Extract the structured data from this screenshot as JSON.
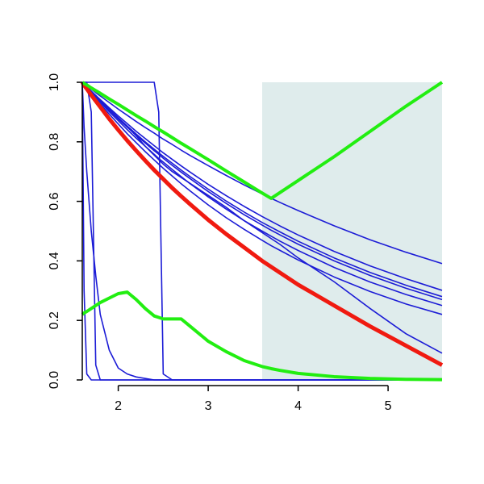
{
  "chart_data": {
    "type": "line",
    "x": [
      1.6,
      1.62,
      1.65,
      1.7,
      1.75,
      1.8,
      1.9,
      2.0,
      2.1,
      2.2,
      2.3,
      2.4,
      2.45,
      2.5,
      2.6,
      2.7,
      2.8,
      3.0,
      3.2,
      3.4,
      3.6,
      3.7,
      3.8,
      4.0,
      4.4,
      4.8,
      5.2,
      5.6
    ],
    "xlim": [
      1.6,
      5.6
    ],
    "xticks": [
      2,
      3,
      4,
      5
    ],
    "ylim": [
      0,
      1
    ],
    "yticks": [
      {
        "value": 0,
        "label": "0.0"
      },
      0.2,
      0.4,
      0.6,
      0.8,
      {
        "value": 1,
        "label": "1.0"
      }
    ],
    "shaded_region": {
      "xlim": [
        3.6,
        5.6
      ],
      "color": "#dfecec"
    },
    "series": [
      {
        "color": "#1c1cd6",
        "width": 1.6,
        "values": [
          1,
          0.995,
          0.988,
          0.977,
          0.965,
          0.954,
          0.932,
          0.91,
          0.889,
          0.868,
          0.848,
          0.829,
          0.819,
          0.809,
          0.791,
          0.772,
          0.754,
          0.72,
          0.687,
          0.655,
          0.625,
          0.61,
          0.596,
          0.569,
          0.518,
          0.471,
          0.429,
          0.391
        ]
      },
      {
        "color": "#1c1cd6",
        "width": 1.6,
        "values": [
          1,
          0.994,
          0.985,
          0.97,
          0.956,
          0.942,
          0.914,
          0.887,
          0.861,
          0.835,
          0.811,
          0.787,
          0.775,
          0.763,
          0.741,
          0.719,
          0.698,
          0.657,
          0.619,
          0.583,
          0.549,
          0.533,
          0.517,
          0.487,
          0.432,
          0.383,
          0.34,
          0.301
        ]
      },
      {
        "color": "#1c1cd6",
        "width": 1.6,
        "values": [
          1,
          0.994,
          0.984,
          0.969,
          0.953,
          0.938,
          0.909,
          0.881,
          0.853,
          0.826,
          0.8,
          0.775,
          0.763,
          0.751,
          0.728,
          0.705,
          0.683,
          0.641,
          0.601,
          0.564,
          0.529,
          0.513,
          0.497,
          0.466,
          0.41,
          0.361,
          0.318,
          0.28
        ]
      },
      {
        "color": "#1c1cd6",
        "width": 1.6,
        "values": [
          1,
          0.993,
          0.984,
          0.968,
          0.952,
          0.937,
          0.906,
          0.877,
          0.849,
          0.822,
          0.796,
          0.77,
          0.758,
          0.745,
          0.721,
          0.698,
          0.676,
          0.633,
          0.593,
          0.555,
          0.52,
          0.503,
          0.487,
          0.456,
          0.4,
          0.351,
          0.308,
          0.27
        ]
      },
      {
        "color": "#1c1cd6",
        "width": 1.6,
        "values": [
          1,
          0.993,
          0.983,
          0.966,
          0.949,
          0.933,
          0.901,
          0.871,
          0.841,
          0.812,
          0.785,
          0.758,
          0.744,
          0.732,
          0.707,
          0.683,
          0.659,
          0.615,
          0.574,
          0.535,
          0.5,
          0.483,
          0.466,
          0.435,
          0.378,
          0.329,
          0.287,
          0.25
        ]
      },
      {
        "color": "#1c1cd6",
        "width": 1.6,
        "values": [
          1,
          0.992,
          0.981,
          0.963,
          0.945,
          0.927,
          0.893,
          0.86,
          0.827,
          0.797,
          0.767,
          0.739,
          0.725,
          0.711,
          0.685,
          0.659,
          0.635,
          0.588,
          0.545,
          0.506,
          0.469,
          0.451,
          0.435,
          0.403,
          0.346,
          0.297,
          0.255,
          0.22
        ]
      },
      {
        "color": "#1c1cd6",
        "width": 1.6,
        "values": [
          1,
          0.994,
          0.985,
          0.97,
          0.955,
          0.94,
          0.91,
          0.88,
          0.85,
          0.82,
          0.785,
          0.755,
          0.74,
          0.725,
          0.7,
          0.68,
          0.66,
          0.62,
          0.58,
          0.535,
          0.495,
          0.475,
          0.455,
          0.41,
          0.33,
          0.24,
          0.155,
          0.09
        ]
      },
      {
        "color": "#1c1cd6",
        "width": 1.6,
        "values": [
          1,
          0.3,
          0.02,
          0,
          0,
          0,
          0,
          0,
          0,
          0,
          0,
          0,
          0,
          0,
          0,
          0,
          0,
          0,
          0,
          0,
          0,
          0,
          0,
          0,
          0,
          0,
          0,
          0
        ]
      },
      {
        "color": "#1c1cd6",
        "width": 1.6,
        "values": [
          1,
          1,
          1,
          0.9,
          0.05,
          0,
          0,
          0,
          0,
          0,
          0,
          0,
          0,
          0,
          0,
          0,
          0,
          0,
          0,
          0,
          0,
          0,
          0,
          0,
          0,
          0,
          0,
          0
        ]
      },
      {
        "color": "#1c1cd6",
        "width": 1.6,
        "values": [
          1,
          0.85,
          0.7,
          0.5,
          0.35,
          0.22,
          0.1,
          0.04,
          0.02,
          0.01,
          0.005,
          0,
          0,
          0,
          0,
          0,
          0,
          0,
          0,
          0,
          0,
          0,
          0,
          0,
          0,
          0,
          0,
          0
        ]
      },
      {
        "color": "#1c1cd6",
        "width": 1.6,
        "values": [
          1,
          1,
          1,
          1,
          1,
          1,
          1,
          1,
          1,
          1,
          1,
          1,
          0.9,
          0.02,
          0,
          0,
          0,
          0,
          0,
          0,
          0,
          0,
          0,
          0,
          0,
          0,
          0,
          0
        ]
      },
      {
        "color": "#f01a10",
        "width": 5,
        "values": [
          1,
          0.99,
          0.978,
          0.957,
          0.937,
          0.917,
          0.877,
          0.84,
          0.804,
          0.77,
          0.737,
          0.705,
          0.69,
          0.675,
          0.645,
          0.617,
          0.59,
          0.538,
          0.49,
          0.445,
          0.4,
          0.38,
          0.36,
          0.32,
          0.25,
          0.18,
          0.115,
          0.05
        ]
      },
      {
        "color": "#22ee11",
        "width": 4,
        "values": [
          1,
          0.996,
          0.991,
          0.981,
          0.972,
          0.963,
          0.944,
          0.926,
          0.907,
          0.888,
          0.87,
          0.851,
          0.842,
          0.833,
          0.814,
          0.795,
          0.777,
          0.74,
          0.702,
          0.665,
          0.628,
          0.61,
          0.63,
          0.67,
          0.75,
          0.835,
          0.92,
          1.0
        ]
      },
      {
        "color": "#22ee11",
        "width": 4,
        "values": [
          0.22,
          0.225,
          0.23,
          0.24,
          0.25,
          0.26,
          0.275,
          0.29,
          0.295,
          0.27,
          0.24,
          0.215,
          0.21,
          0.205,
          0.205,
          0.205,
          0.18,
          0.13,
          0.095,
          0.065,
          0.045,
          0.038,
          0.032,
          0.022,
          0.011,
          0.005,
          0.002,
          0.001
        ]
      }
    ]
  }
}
